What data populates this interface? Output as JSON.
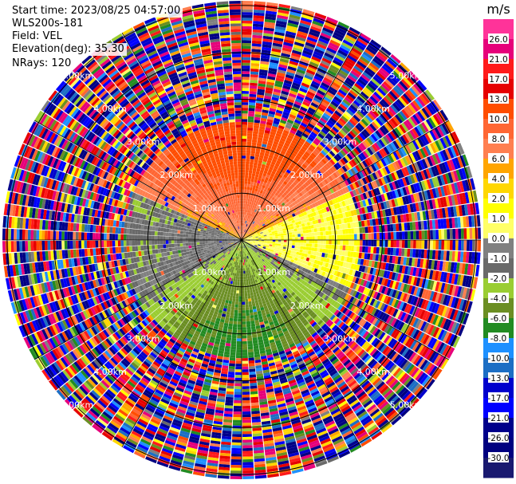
{
  "header": {
    "start_time": "Start time: 2023/08/25 04:57:00",
    "instrument": "WLS200s-181",
    "field": "Field: VEL",
    "elevation": "Elevation(deg): 35.30",
    "nrays": "NRays: 120"
  },
  "colorbar": {
    "unit": "m/s",
    "ticks": [
      "26.0",
      "21.0",
      "17.0",
      "13.0",
      "10.0",
      "8.0",
      "6.0",
      "4.0",
      "2.0",
      "1.0",
      "0.0",
      "-1.0",
      "-2.0",
      "-4.0",
      "-6.0",
      "-8.0",
      "-10.0",
      "-13.0",
      "-17.0",
      "-21.0",
      "-26.0",
      "-30.0"
    ],
    "colors": [
      "#ff3399",
      "#e6007a",
      "#ff1a1a",
      "#e60000",
      "#ff4d00",
      "#ff6633",
      "#ff7f50",
      "#ffa500",
      "#ffd700",
      "#ffff00",
      "#ffff66",
      "#808080",
      "#696969",
      "#9acd32",
      "#6b8e23",
      "#228b22",
      "#1e90ff",
      "#1c6ec4",
      "#0000cd",
      "#0000ff",
      "#00008b",
      "#000080",
      "#191970"
    ]
  },
  "chart_data": {
    "type": "heatmap",
    "projection": "polar PPI",
    "field": "VEL",
    "unit": "m/s",
    "nrays": 120,
    "elevation_deg": 35.3,
    "range_rings_km": [
      1.0,
      2.0,
      3.0,
      4.0,
      5.0
    ],
    "ring_labels": [
      "1.00km",
      "2.00km",
      "3.00km",
      "4.00km",
      "5.00km"
    ],
    "max_range_km": 5.1,
    "valid_range_km": 2.5,
    "value_min": -30.0,
    "value_max": 26.0
  }
}
